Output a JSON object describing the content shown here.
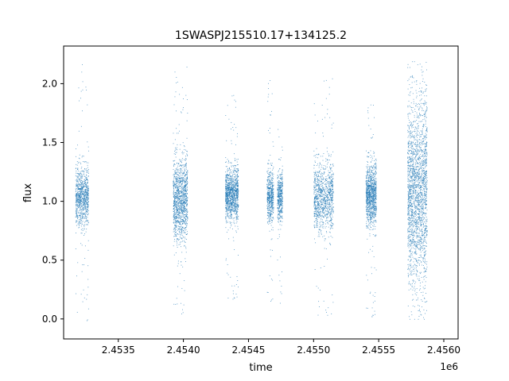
{
  "figure": {
    "title": "1SWASPJ215510.17+134125.2",
    "offset_label": "1e6"
  },
  "chart_data": {
    "type": "scatter",
    "title": "1SWASPJ215510.17+134125.2",
    "xlabel": "time",
    "ylabel": "flux",
    "x_offset_multiplier": "1e6",
    "xlim": [
      2.45308,
      2.45611
    ],
    "ylim": [
      -0.17,
      2.32
    ],
    "x_ticks": [
      2.4535,
      2.454,
      2.4545,
      2.455,
      2.4555,
      2.456
    ],
    "x_tick_labels": [
      "2.4535",
      "2.4540",
      "2.4545",
      "2.4550",
      "2.4555",
      "2.4560"
    ],
    "y_ticks": [
      0.0,
      0.5,
      1.0,
      1.5,
      2.0
    ],
    "y_tick_labels": [
      "0.0",
      "0.5",
      "1.0",
      "1.5",
      "2.0"
    ],
    "grid": false,
    "marker_color": "#1f77b4",
    "clusters": [
      {
        "x_start": 2.45317,
        "x_end": 2.45327,
        "y_median": 1.04,
        "y_spread": 0.12,
        "y_min": -0.06,
        "y_max": 2.17,
        "density": 1.0
      },
      {
        "x_start": 2.45392,
        "x_end": 2.45403,
        "y_median": 1.02,
        "y_spread": 0.17,
        "y_min": 0.02,
        "y_max": 2.15,
        "density": 1.4
      },
      {
        "x_start": 2.45432,
        "x_end": 2.45442,
        "y_median": 1.06,
        "y_spread": 0.11,
        "y_min": 0.15,
        "y_max": 1.92,
        "density": 1.3
      },
      {
        "x_start": 2.45464,
        "x_end": 2.45469,
        "y_median": 1.05,
        "y_spread": 0.11,
        "y_min": 0.13,
        "y_max": 2.09,
        "density": 0.6
      },
      {
        "x_start": 2.45472,
        "x_end": 2.45476,
        "y_median": 1.03,
        "y_spread": 0.1,
        "y_min": 0.05,
        "y_max": 1.65,
        "density": 0.5
      },
      {
        "x_start": 2.455,
        "x_end": 2.45515,
        "y_median": 1.04,
        "y_spread": 0.14,
        "y_min": 0.0,
        "y_max": 2.05,
        "density": 1.2
      },
      {
        "x_start": 2.4554,
        "x_end": 2.45548,
        "y_median": 1.06,
        "y_spread": 0.13,
        "y_min": 0.0,
        "y_max": 1.88,
        "density": 1.2
      },
      {
        "x_start": 2.45572,
        "x_end": 2.45587,
        "y_median": 1.08,
        "y_spread": 0.38,
        "y_min": 0.0,
        "y_max": 2.19,
        "density": 2.4
      }
    ]
  }
}
